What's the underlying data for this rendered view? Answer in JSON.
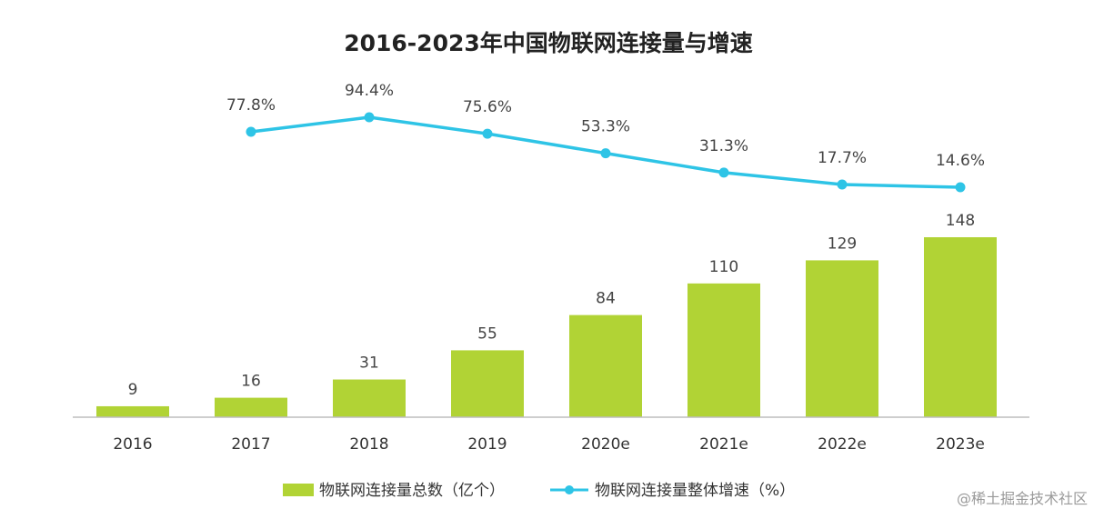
{
  "chart_data": {
    "type": "bar",
    "title": "2016-2023年中国物联网连接量与增速",
    "categories": [
      "2016",
      "2017",
      "2018",
      "2019",
      "2020e",
      "2021e",
      "2022e",
      "2023e"
    ],
    "series": [
      {
        "name": "物联网连接量总数（亿个）",
        "type": "bar",
        "color": "#b1d335",
        "values": [
          9,
          16,
          31,
          55,
          84,
          110,
          129,
          148
        ],
        "labels": [
          "9",
          "16",
          "31",
          "55",
          "84",
          "110",
          "129",
          "148"
        ]
      },
      {
        "name": "物联网连接量整体增速（%）",
        "type": "line",
        "color": "#2ec4e6",
        "values": [
          null,
          77.8,
          94.4,
          75.6,
          53.3,
          31.3,
          17.7,
          14.6
        ],
        "labels": [
          null,
          "77.8%",
          "94.4%",
          "75.6%",
          "53.3%",
          "31.3%",
          "17.7%",
          "14.6%"
        ]
      }
    ],
    "grid": false,
    "legend": "bottom"
  },
  "watermark": "@稀土掘金技术社区"
}
